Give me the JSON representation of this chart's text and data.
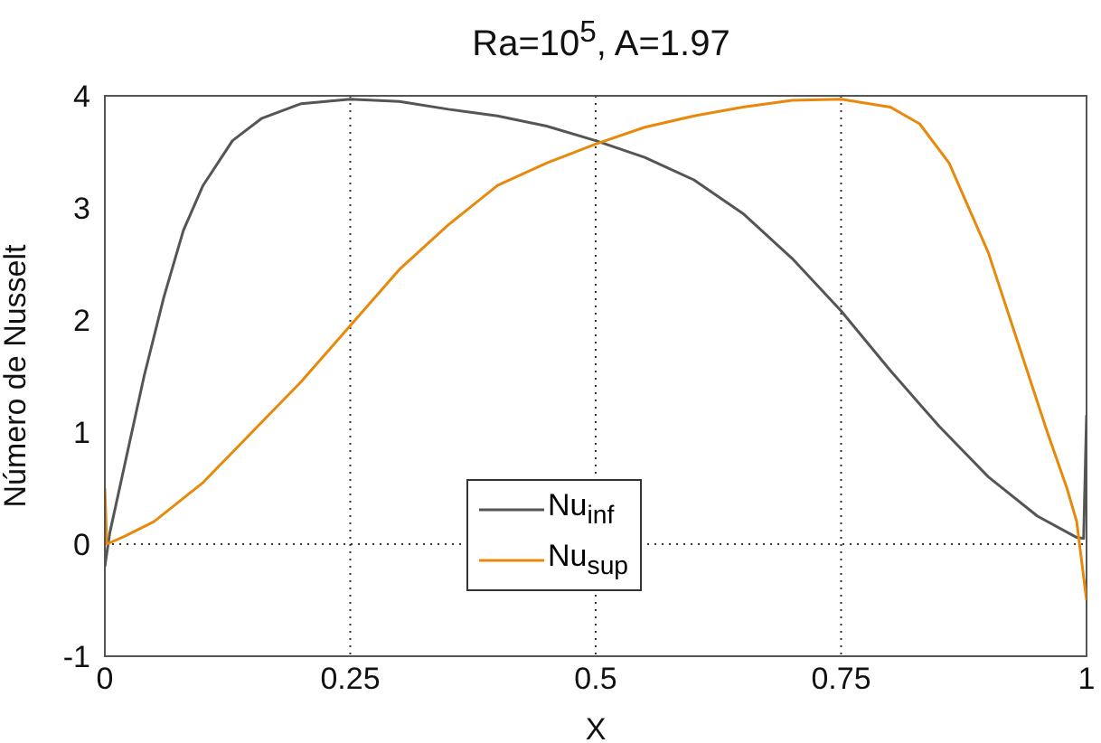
{
  "chart_data": {
    "type": "line",
    "title": "Ra=10$^{5}$, A=1.97",
    "xlabel": "X",
    "ylabel": "Número de Nusselt",
    "xlim": [
      0,
      1
    ],
    "ylim": [
      -1,
      4
    ],
    "xticks": [
      0,
      0.25,
      0.5,
      0.75,
      1
    ],
    "yticks": [
      -1,
      0,
      1,
      2,
      3,
      4
    ],
    "grid": "x",
    "legend": "bottom",
    "line_style": "solid",
    "marker": "none",
    "ref_lines": [
      {
        "axis": "y",
        "value": 0,
        "line_style": "dotted",
        "color": "#333333"
      }
    ],
    "series": [
      {
        "name": "Nu$_{inf}$",
        "color": "#555555",
        "x": [
          0,
          0.005,
          0.02,
          0.04,
          0.06,
          0.08,
          0.1,
          0.13,
          0.16,
          0.2,
          0.25,
          0.3,
          0.35,
          0.4,
          0.45,
          0.5,
          0.55,
          0.6,
          0.65,
          0.7,
          0.75,
          0.8,
          0.85,
          0.9,
          0.95,
          0.99,
          0.997,
          1
        ],
        "values": [
          -0.2,
          0.1,
          0.7,
          1.5,
          2.2,
          2.8,
          3.2,
          3.6,
          3.8,
          3.93,
          3.97,
          3.95,
          3.88,
          3.82,
          3.73,
          3.6,
          3.45,
          3.25,
          2.95,
          2.55,
          2.08,
          1.55,
          1.05,
          0.6,
          0.25,
          0.06,
          0.05,
          1.15
        ]
      },
      {
        "name": "Nu$_{sup}$",
        "color": "#e8890c",
        "x": [
          0,
          0.002,
          0.02,
          0.05,
          0.1,
          0.15,
          0.2,
          0.25,
          0.3,
          0.35,
          0.4,
          0.45,
          0.5,
          0.55,
          0.6,
          0.65,
          0.7,
          0.75,
          0.8,
          0.83,
          0.86,
          0.9,
          0.93,
          0.96,
          0.98,
          0.99,
          1
        ],
        "values": [
          0.5,
          0.0,
          0.07,
          0.2,
          0.55,
          1.0,
          1.45,
          1.95,
          2.45,
          2.85,
          3.2,
          3.4,
          3.57,
          3.72,
          3.82,
          3.9,
          3.96,
          3.97,
          3.9,
          3.75,
          3.4,
          2.6,
          1.8,
          1.0,
          0.5,
          0.2,
          -0.5
        ]
      }
    ]
  }
}
